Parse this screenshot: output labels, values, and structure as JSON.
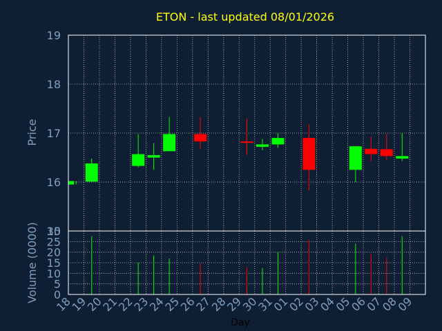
{
  "chart_data": {
    "type": "candlestick",
    "title": "ETON - last updated 08/01/2026",
    "price_label": "Price",
    "volume_label": "Volume (0000)",
    "xlabel": "Day",
    "colors": {
      "up": "#00ff00",
      "down": "#ff0000",
      "background": "#0f1f33",
      "title": "#ffff00",
      "axis_text": "#7f9fbf",
      "grid": "#ffffff"
    },
    "grid": true,
    "price_ylim": [
      15,
      19
    ],
    "price_ticks": [
      "15",
      "16",
      "17",
      "18",
      "19"
    ],
    "volume_ylim": [
      0,
      30
    ],
    "volume_ticks": [
      "0",
      "5",
      "10",
      "15",
      "20",
      "25",
      "30"
    ],
    "x_ticks": [
      "18",
      "19",
      "20",
      "21",
      "22",
      "23",
      "24",
      "25",
      "26",
      "27",
      "28",
      "29",
      "30",
      "31",
      "01",
      "02",
      "03",
      "04",
      "05",
      "06",
      "07",
      "08",
      "09"
    ],
    "candles": [
      {
        "x": 0,
        "open": 15.95,
        "close": 16.02,
        "high": 16.02,
        "low": 15.95,
        "volume": 0
      },
      {
        "x": 1,
        "open": 16.01,
        "close": 16.38,
        "high": 16.48,
        "low": 16.0,
        "volume": 27.5
      },
      {
        "x": 4,
        "open": 16.33,
        "close": 16.57,
        "high": 16.98,
        "low": 16.3,
        "volume": 15
      },
      {
        "x": 5,
        "open": 16.5,
        "close": 16.55,
        "high": 16.8,
        "low": 16.25,
        "volume": 18.5
      },
      {
        "x": 6,
        "open": 16.63,
        "close": 16.98,
        "high": 17.33,
        "low": 16.63,
        "volume": 17
      },
      {
        "x": 8,
        "open": 16.98,
        "close": 16.83,
        "high": 17.33,
        "low": 16.67,
        "volume": 14.5
      },
      {
        "x": 11,
        "open": 16.83,
        "close": 16.8,
        "high": 17.3,
        "low": 16.55,
        "volume": 13
      },
      {
        "x": 12,
        "open": 16.72,
        "close": 16.77,
        "high": 16.88,
        "low": 16.65,
        "volume": 12.5
      },
      {
        "x": 13,
        "open": 16.77,
        "close": 16.9,
        "high": 17.0,
        "low": 16.7,
        "volume": 20
      },
      {
        "x": 15,
        "open": 16.9,
        "close": 16.25,
        "high": 17.18,
        "low": 15.83,
        "volume": 26
      },
      {
        "x": 18,
        "open": 16.25,
        "close": 16.73,
        "high": 16.73,
        "low": 16.0,
        "volume": 24
      },
      {
        "x": 19,
        "open": 16.68,
        "close": 16.57,
        "high": 16.93,
        "low": 16.42,
        "volume": 19
      },
      {
        "x": 20,
        "open": 16.67,
        "close": 16.53,
        "high": 16.98,
        "low": 16.45,
        "volume": 17.5
      },
      {
        "x": 21,
        "open": 16.48,
        "close": 16.53,
        "high": 17.0,
        "low": 16.43,
        "volume": 27.5
      }
    ]
  }
}
